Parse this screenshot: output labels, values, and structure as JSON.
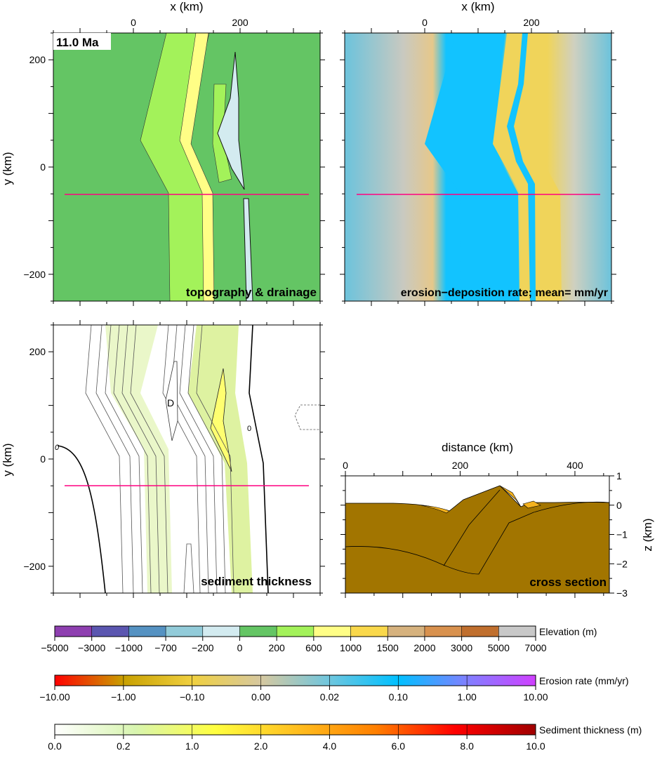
{
  "time_label": "11.0 Ma",
  "axes": {
    "x_label": "x (km)",
    "y_label": "y (km)",
    "x_ticks": [
      "0",
      "200"
    ],
    "y_ticks": [
      "200",
      "0",
      "-200"
    ],
    "x_range_km": [
      -150,
      350
    ],
    "y_range_km": [
      -250,
      250
    ]
  },
  "panels": {
    "topography": {
      "title": "topography & drainage"
    },
    "erosion": {
      "title": "erosion−deposition rate;  mean= mm/yr"
    },
    "sediment": {
      "title": "sediment thickness",
      "contour_zero_label": "0",
      "depression_label": "D"
    },
    "cross_section": {
      "title": "cross section",
      "x_label": "distance (km)",
      "x_ticks": [
        "0",
        "200",
        "400"
      ],
      "z_label": "z (km)",
      "z_ticks": [
        "1",
        "0",
        "−1",
        "−2",
        "−3"
      ],
      "x_range_km": [
        0,
        460
      ],
      "z_range_km": [
        -3,
        1
      ]
    }
  },
  "profile_line_color": "#ff0080",
  "colorbars": [
    {
      "name": "Elevation (m)",
      "colors": [
        "#8e3fb0",
        "#5b56b0",
        "#5592c2",
        "#92cbd9",
        "#d3ebf0",
        "#64c564",
        "#a3f25a",
        "#fffe86",
        "#f9d84b",
        "#d6b27e",
        "#d8914e",
        "#c06f2e",
        "#c8c8c8"
      ],
      "tick_labels": [
        "−5000",
        "−3000",
        "−1000",
        "−700",
        "−200",
        "0",
        "200",
        "600",
        "1000",
        "1500",
        "2000",
        "3000",
        "5000",
        "7000"
      ]
    },
    {
      "name": "Erosion rate (mm/yr)",
      "gradient": [
        "#ff0000",
        "#c8a000",
        "#f0d040",
        "#d6c8a0",
        "#6fc6de",
        "#00c0ff",
        "#8080ff",
        "#d040ff"
      ],
      "tick_labels": [
        "−10.00",
        "−1.00",
        "−0.10",
        "0.00",
        "0.02",
        "0.10",
        "1.00",
        "10.00"
      ]
    },
    {
      "name": "Sediment thickness (m)",
      "gradient": [
        "#ffffff",
        "#d8f5b0",
        "#ffff40",
        "#ffc020",
        "#ff8000",
        "#ff0000",
        "#a00000"
      ],
      "tick_labels": [
        "0.0",
        "0.2",
        "1.0",
        "2.0",
        "4.0",
        "6.0",
        "8.0",
        "10.0"
      ]
    }
  ]
}
